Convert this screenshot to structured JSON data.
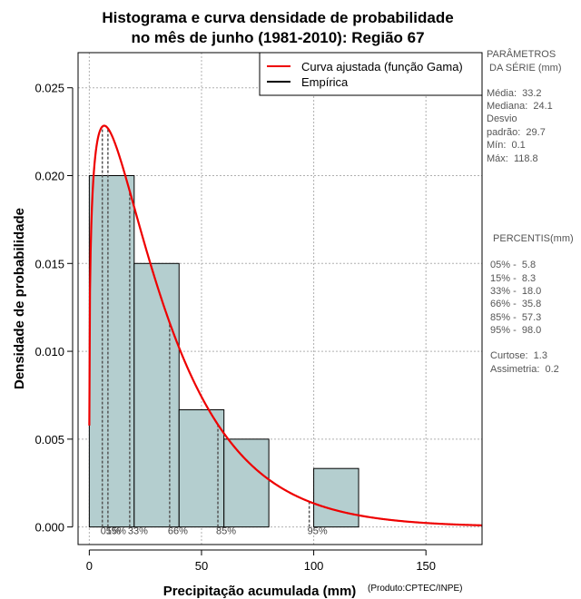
{
  "chart_data": {
    "type": "bar",
    "title": [
      "Histograma e curva densidade de probabilidade",
      "no mês de junho (1981-2010): Região 67"
    ],
    "xlabel": "Precipitação acumulada (mm)",
    "xlabel_suffix": "(Produto:CPTEC/INPE)",
    "ylabel": "Densidade de probabilidade",
    "xlim": [
      -5,
      175
    ],
    "ylim": [
      -0.001,
      0.027
    ],
    "x_ticks": [
      0,
      50,
      100,
      150
    ],
    "y_ticks": [
      0.0,
      0.005,
      0.01,
      0.015,
      0.02,
      0.025
    ],
    "y_tick_labels": [
      "0.000",
      "0.005",
      "0.010",
      "0.015",
      "0.020",
      "0.025"
    ],
    "grid": true,
    "histogram": {
      "bins": [
        {
          "x0": 0,
          "x1": 20,
          "density": 0.02
        },
        {
          "x0": 20,
          "x1": 40,
          "density": 0.015
        },
        {
          "x0": 40,
          "x1": 60,
          "density": 0.00667
        },
        {
          "x0": 60,
          "x1": 80,
          "density": 0.005
        },
        {
          "x0": 80,
          "x1": 100,
          "density": 0.0
        },
        {
          "x0": 100,
          "x1": 120,
          "density": 0.00333
        }
      ],
      "fill_color": "#b4cecf"
    },
    "gamma_fit": {
      "shape": 1.25,
      "scale": 26.6,
      "color": "#ee0000"
    },
    "percentile_lines": [
      {
        "value": 5.8,
        "label": "05%"
      },
      {
        "value": 8.3,
        "label": "15%"
      },
      {
        "value": 18.0,
        "label": "33%"
      },
      {
        "value": 35.8,
        "label": "66%"
      },
      {
        "value": 57.3,
        "label": "85%"
      },
      {
        "value": 98.0,
        "label": "95%"
      }
    ],
    "legend": [
      {
        "label": "Curva ajustada (função Gama)",
        "color": "#ee0000"
      },
      {
        "label": "Empírica",
        "color": "#000000"
      }
    ],
    "legend_position": "top-right"
  },
  "side_panel": {
    "params_heading": [
      "PARÂMETROS",
      " DA SÉRIE (mm)"
    ],
    "params": [
      "Média:  33.2",
      "Mediana:  24.1",
      "Desvio",
      "padrão:  29.7",
      "Mín:  0.1",
      "Máx:  118.8"
    ],
    "percentis_heading": " PERCENTIS(mm)",
    "percentis": [
      "05% -  5.8",
      "15% -  8.3",
      "33% -  18.0",
      "66% -  35.8",
      "85% -  57.3",
      "95% -  98.0"
    ],
    "extra": [
      "Curtose:  1.3",
      "Assimetria:  0.2"
    ]
  }
}
